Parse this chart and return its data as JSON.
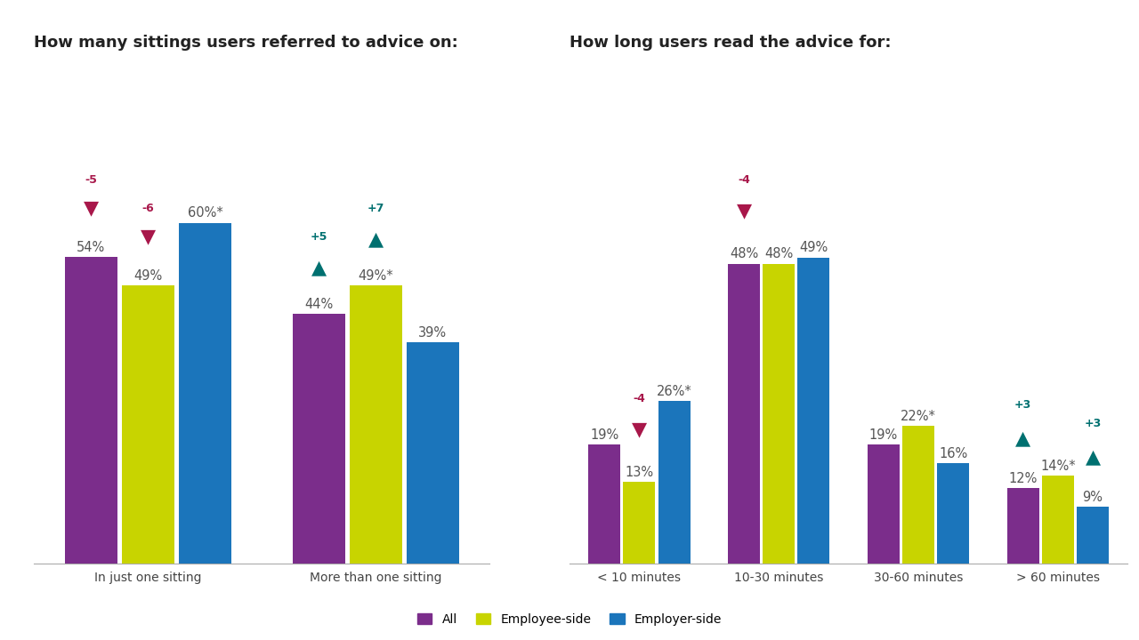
{
  "left_title": "How many sittings users referred to advice on:",
  "right_title": "How long users read the advice for:",
  "colors": {
    "all": "#7B2D8B",
    "employee": "#C8D400",
    "employer": "#1B75BB",
    "arrow_down": "#A8174A",
    "arrow_up": "#007070"
  },
  "left_categories": [
    "In just one sitting",
    "More than one sitting"
  ],
  "left_data": {
    "all": [
      54,
      44
    ],
    "employee": [
      49,
      49
    ],
    "employer": [
      60,
      39
    ]
  },
  "left_labels": {
    "all": [
      "54%",
      "44%"
    ],
    "employee": [
      "49%",
      "49%*"
    ],
    "employer": [
      "60%*",
      "39%"
    ]
  },
  "left_annotations": [
    {
      "bar": 0,
      "series": "all",
      "text": "-5",
      "arrow": "down",
      "color": "arrow_down"
    },
    {
      "bar": 0,
      "series": "employee",
      "text": "-6",
      "arrow": "down",
      "color": "arrow_down"
    },
    {
      "bar": 1,
      "series": "all",
      "text": "+5",
      "arrow": "up",
      "color": "arrow_up"
    },
    {
      "bar": 1,
      "series": "employee",
      "text": "+7",
      "arrow": "up",
      "color": "arrow_up"
    }
  ],
  "right_categories": [
    "< 10 minutes",
    "10-30 minutes",
    "30-60 minutes",
    "> 60 minutes"
  ],
  "right_data": {
    "all": [
      19,
      48,
      19,
      12
    ],
    "employee": [
      13,
      48,
      22,
      14
    ],
    "employer": [
      26,
      49,
      16,
      9
    ]
  },
  "right_labels": {
    "all": [
      "19%",
      "48%",
      "19%",
      "12%"
    ],
    "employee": [
      "13%",
      "48%",
      "22%*",
      "14%*"
    ],
    "employer": [
      "26%*",
      "49%",
      "16%",
      "9%"
    ]
  },
  "right_annotations": [
    {
      "bar": 0,
      "series": "employee",
      "text": "-4",
      "arrow": "down",
      "color": "arrow_down"
    },
    {
      "bar": 1,
      "series": "all",
      "text": "-4",
      "arrow": "down",
      "color": "arrow_down"
    },
    {
      "bar": 3,
      "series": "all",
      "text": "+3",
      "arrow": "up",
      "color": "arrow_up"
    },
    {
      "bar": 3,
      "series": "employer",
      "text": "+3",
      "arrow": "up",
      "color": "arrow_up"
    }
  ],
  "legend_labels": [
    "All",
    "Employee-side",
    "Employer-side"
  ],
  "bar_width": 0.25,
  "fontsize_title": 13,
  "fontsize_label": 10.5,
  "fontsize_annot_text": 9,
  "fontsize_annot_arrow": 16,
  "fontsize_legend": 10,
  "fontsize_xtick": 10
}
